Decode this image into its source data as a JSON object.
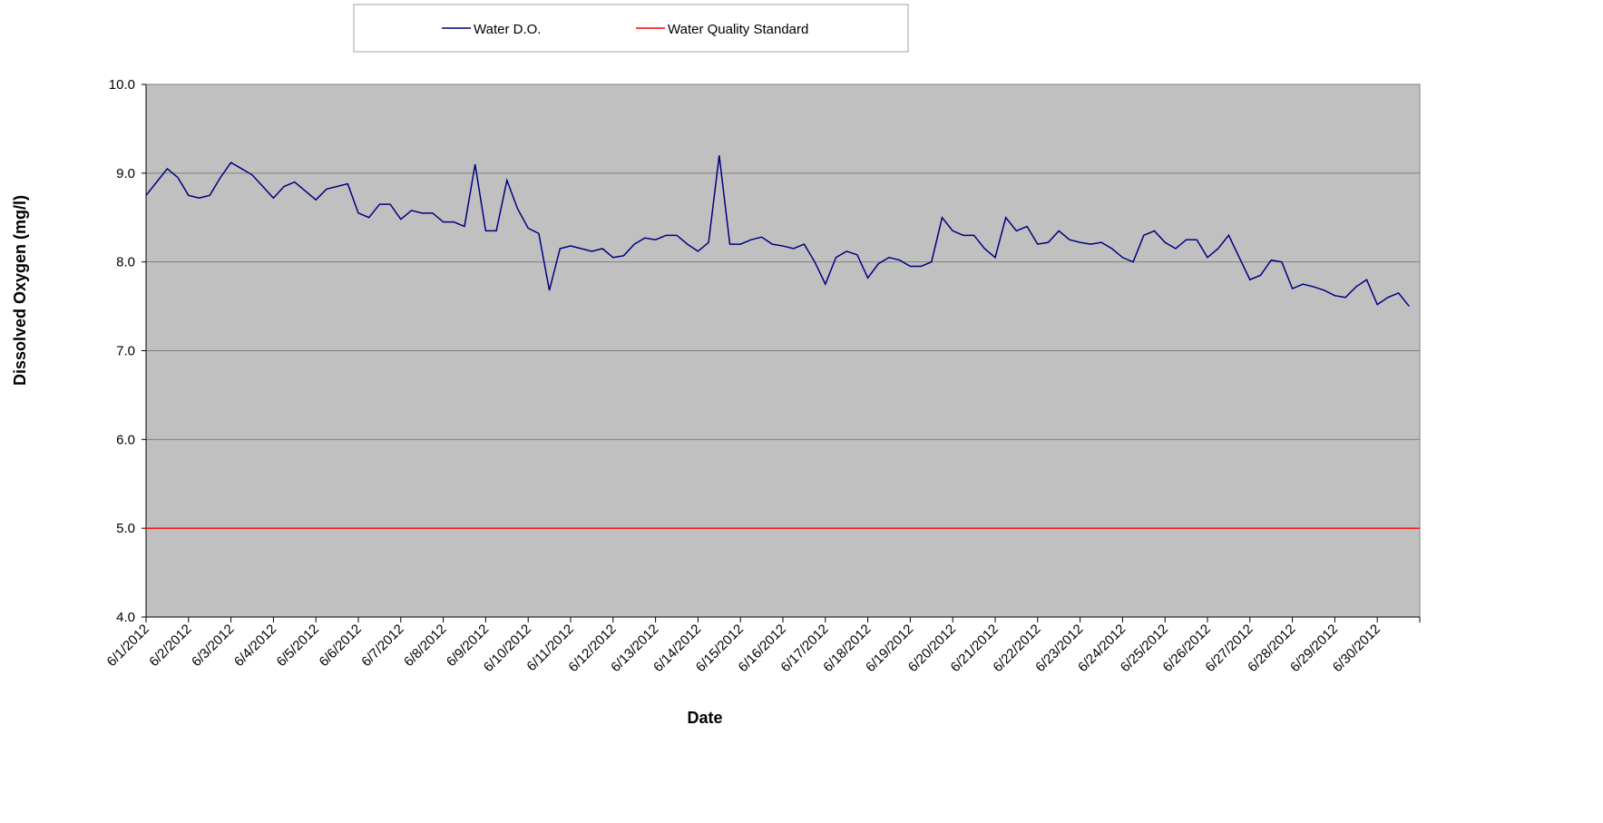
{
  "chart_data": {
    "type": "line",
    "y_label": "Dissolved Oxygen (mg/l)",
    "x_label": "Date",
    "categories": [
      "6/1/2012",
      null,
      null,
      null,
      "6/2/2012",
      null,
      null,
      null,
      "6/3/2012",
      null,
      null,
      null,
      "6/4/2012",
      null,
      null,
      null,
      "6/5/2012",
      null,
      null,
      null,
      "6/6/2012",
      null,
      null,
      null,
      "6/7/2012",
      null,
      null,
      null,
      "6/8/2012",
      null,
      null,
      null,
      "6/9/2012",
      null,
      null,
      null,
      "6/10/2012",
      null,
      null,
      null,
      "6/11/2012",
      null,
      null,
      null,
      "6/12/2012",
      null,
      null,
      null,
      "6/13/2012",
      null,
      null,
      null,
      "6/14/2012",
      null,
      null,
      null,
      "6/15/2012",
      null,
      null,
      null,
      "6/16/2012",
      null,
      null,
      null,
      "6/17/2012",
      null,
      null,
      null,
      "6/18/2012",
      null,
      null,
      null,
      "6/19/2012",
      null,
      null,
      null,
      "6/20/2012",
      null,
      null,
      null,
      "6/21/2012",
      null,
      null,
      null,
      "6/22/2012",
      null,
      null,
      null,
      "6/23/2012",
      null,
      null,
      null,
      "6/24/2012",
      null,
      null,
      null,
      "6/25/2012",
      null,
      null,
      null,
      "6/26/2012",
      null,
      null,
      null,
      "6/27/2012",
      null,
      null,
      null,
      "6/28/2012",
      null,
      null,
      null,
      "6/29/2012",
      null,
      null,
      null,
      "6/30/2012",
      null,
      null,
      null
    ],
    "series": [
      {
        "name": "Water D.O.",
        "color": "#000080",
        "values": [
          8.75,
          8.9,
          9.05,
          8.95,
          8.75,
          8.72,
          8.75,
          8.95,
          9.12,
          9.05,
          8.98,
          8.85,
          8.72,
          8.85,
          8.9,
          8.8,
          8.7,
          8.82,
          8.85,
          8.88,
          8.55,
          8.5,
          8.65,
          8.65,
          8.48,
          8.58,
          8.55,
          8.55,
          8.45,
          8.45,
          8.4,
          9.1,
          8.35,
          8.35,
          8.92,
          8.6,
          8.38,
          8.32,
          7.68,
          8.15,
          8.18,
          8.15,
          8.12,
          8.15,
          8.05,
          8.07,
          8.2,
          8.27,
          8.25,
          8.3,
          8.3,
          8.2,
          8.12,
          8.22,
          9.2,
          8.2,
          8.2,
          8.25,
          8.28,
          8.2,
          8.18,
          8.15,
          8.2,
          8.0,
          7.75,
          8.05,
          8.12,
          8.08,
          7.82,
          7.98,
          8.05,
          8.02,
          7.95,
          7.95,
          8.0,
          8.5,
          8.35,
          8.3,
          8.3,
          8.15,
          8.05,
          8.5,
          8.35,
          8.4,
          8.2,
          8.22,
          8.35,
          8.25,
          8.22,
          8.2,
          8.22,
          8.15,
          8.05,
          8.0,
          8.3,
          8.35,
          8.22,
          8.15,
          8.25,
          8.25,
          8.05,
          8.15,
          8.3,
          8.05,
          7.8,
          7.85,
          8.02,
          8.0,
          7.7,
          7.75,
          7.72,
          7.68,
          7.62,
          7.6,
          7.72,
          7.8,
          7.52,
          7.6,
          7.65,
          7.5
        ]
      },
      {
        "name": "Water Quality Standard",
        "color": "#ff0000",
        "values": [
          5,
          5,
          5,
          5,
          5,
          5,
          5,
          5,
          5,
          5,
          5,
          5,
          5,
          5,
          5,
          5,
          5,
          5,
          5,
          5,
          5,
          5,
          5,
          5,
          5,
          5,
          5,
          5,
          5,
          5,
          5,
          5,
          5,
          5,
          5,
          5,
          5,
          5,
          5,
          5,
          5,
          5,
          5,
          5,
          5,
          5,
          5,
          5,
          5,
          5,
          5,
          5,
          5,
          5,
          5,
          5,
          5,
          5,
          5,
          5,
          5,
          5,
          5,
          5,
          5,
          5,
          5,
          5,
          5,
          5,
          5,
          5,
          5,
          5,
          5,
          5,
          5,
          5,
          5,
          5,
          5,
          5,
          5,
          5,
          5,
          5,
          5,
          5,
          5,
          5,
          5,
          5,
          5,
          5,
          5,
          5,
          5,
          5,
          5,
          5,
          5,
          5,
          5,
          5,
          5,
          5,
          5,
          5,
          5,
          5,
          5,
          5,
          5,
          5,
          5,
          5,
          5,
          5,
          5,
          5
        ]
      }
    ],
    "ylim": [
      4,
      10
    ],
    "yticks": [
      {
        "value": 4,
        "label": "4.0"
      },
      {
        "value": 5,
        "label": "5.0"
      },
      {
        "value": 6,
        "label": "6.0"
      },
      {
        "value": 7,
        "label": "7.0"
      },
      {
        "value": 8,
        "label": "8.0"
      },
      {
        "value": 9,
        "label": "9.0"
      },
      {
        "value": 10,
        "label": "10.0"
      }
    ],
    "grid": true,
    "legend": "top"
  }
}
